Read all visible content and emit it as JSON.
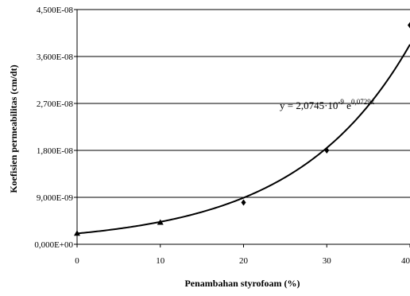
{
  "chart_data": {
    "type": "scatter",
    "xlabel": "Penambahan styrofoam (%)",
    "ylabel": "Koefisien permeabilitas (cm/dt)",
    "xlim": [
      0,
      40
    ],
    "ylim": [
      0,
      4.5e-08
    ],
    "x_ticks": [
      "0",
      "10",
      "20",
      "30",
      "40"
    ],
    "y_ticks": [
      "0,000E+00",
      "9,000E-09",
      "1,800E-08",
      "2,700E-08",
      "3,600E-08",
      "4,500E-08"
    ],
    "grid": "horizontal",
    "series": [
      {
        "marker": "triangle",
        "x": [
          0,
          10
        ],
        "y": [
          2.1e-09,
          4.2e-09
        ]
      },
      {
        "marker": "diamond",
        "x": [
          20,
          30,
          40
        ],
        "y": [
          8e-09,
          1.8e-08,
          4.2e-08
        ]
      }
    ],
    "trendline": {
      "type": "exponential",
      "a": 2.0745e-09,
      "b": 0.0729,
      "equation_base": "y = 2,0745·10",
      "equation_exp1": "-9",
      "equation_mid": " e",
      "equation_exp2": "0,0729x"
    }
  }
}
